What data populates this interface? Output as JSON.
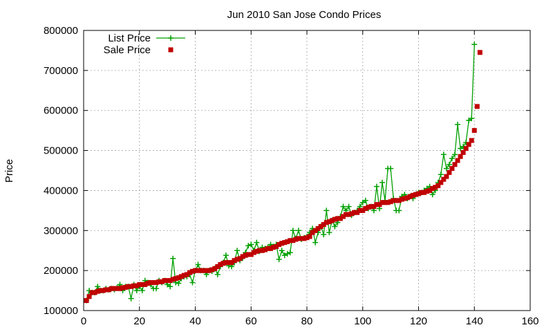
{
  "chart_data": {
    "type": "line",
    "title": "Jun 2010 San Jose Condo Prices",
    "xlabel": "",
    "ylabel": "Price",
    "xlim": [
      0,
      160
    ],
    "ylim": [
      100000,
      800000
    ],
    "x_ticks": [
      0,
      20,
      40,
      60,
      80,
      100,
      120,
      140,
      160
    ],
    "y_ticks": [
      100000,
      200000,
      300000,
      400000,
      500000,
      600000,
      700000,
      800000
    ],
    "grid": true,
    "legend_position": "top-left",
    "series": [
      {
        "name": "List Price",
        "style": "line-with-plus-markers",
        "color": "#00a000",
        "values": [
          125000,
          150000,
          145000,
          145000,
          160000,
          150000,
          150000,
          155000,
          152000,
          155000,
          152000,
          157000,
          165000,
          150000,
          160000,
          160000,
          130000,
          165000,
          150000,
          160000,
          150000,
          175000,
          170000,
          165000,
          155000,
          155000,
          175000,
          170000,
          175000,
          165000,
          160000,
          230000,
          170000,
          168000,
          180000,
          185000,
          185000,
          190000,
          170000,
          200000,
          215000,
          200000,
          200000,
          190000,
          200000,
          198000,
          205000,
          190000,
          210000,
          220000,
          238000,
          212000,
          210000,
          220000,
          250000,
          225000,
          232000,
          245000,
          262000,
          265000,
          250000,
          270000,
          248000,
          258000,
          255000,
          258000,
          265000,
          260000,
          265000,
          228000,
          250000,
          238000,
          242000,
          245000,
          300000,
          280000,
          300000,
          278000,
          282000,
          285000,
          295000,
          305000,
          270000,
          295000,
          310000,
          290000,
          350000,
          295000,
          325000,
          310000,
          320000,
          335000,
          360000,
          350000,
          360000,
          338000,
          345000,
          350000,
          360000,
          370000,
          375000,
          355000,
          360000,
          350000,
          410000,
          355000,
          420000,
          375000,
          455000,
          455000,
          380000,
          350000,
          350000,
          385000,
          390000,
          380000,
          385000,
          380000,
          390000,
          395000,
          395000,
          400000,
          405000,
          410000,
          390000,
          400000,
          420000,
          440000,
          490000,
          455000,
          465000,
          480000,
          490000,
          565000,
          505000,
          510000,
          520000,
          575000,
          580000,
          765000
        ]
      },
      {
        "name": "Sale Price",
        "style": "square-markers",
        "color": "#c00000",
        "values": [
          125000,
          135000,
          145000,
          145000,
          148000,
          150000,
          150000,
          152000,
          152000,
          155000,
          155000,
          155000,
          155000,
          157000,
          158000,
          160000,
          160000,
          162000,
          162000,
          165000,
          165000,
          165000,
          168000,
          170000,
          170000,
          170000,
          172000,
          172000,
          175000,
          175000,
          175000,
          178000,
          180000,
          182000,
          185000,
          188000,
          190000,
          195000,
          198000,
          200000,
          200000,
          200000,
          200000,
          200000,
          200000,
          202000,
          205000,
          210000,
          215000,
          218000,
          220000,
          220000,
          220000,
          225000,
          228000,
          230000,
          235000,
          238000,
          240000,
          240000,
          245000,
          248000,
          250000,
          250000,
          252000,
          255000,
          255000,
          258000,
          260000,
          265000,
          268000,
          270000,
          272000,
          275000,
          275000,
          278000,
          280000,
          280000,
          280000,
          282000,
          285000,
          295000,
          300000,
          305000,
          310000,
          315000,
          320000,
          322000,
          325000,
          328000,
          330000,
          330000,
          335000,
          340000,
          340000,
          342000,
          345000,
          345000,
          350000,
          350000,
          355000,
          358000,
          360000,
          360000,
          365000,
          365000,
          370000,
          370000,
          370000,
          372000,
          375000,
          375000,
          375000,
          378000,
          380000,
          382000,
          385000,
          388000,
          390000,
          392000,
          395000,
          395000,
          398000,
          400000,
          405000,
          408000,
          412000,
          420000,
          428000,
          435000,
          445000,
          455000,
          465000,
          475000,
          485000,
          495000,
          505000,
          515000,
          525000,
          550000,
          610000,
          745000
        ]
      }
    ]
  }
}
